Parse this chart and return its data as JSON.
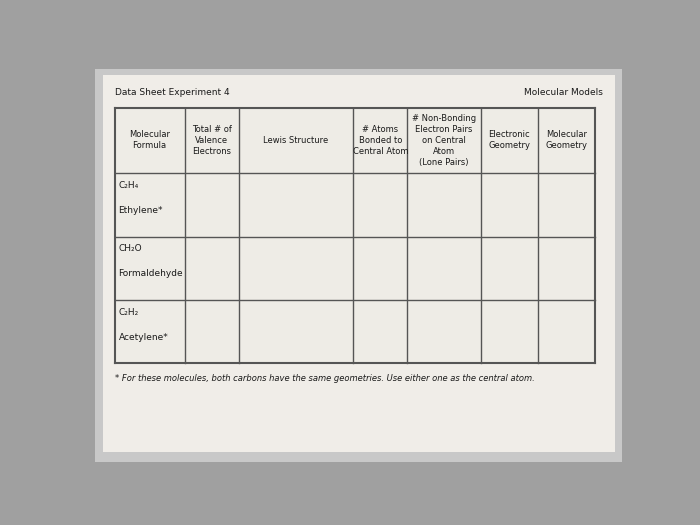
{
  "title_left": "Data Sheet Experiment 4",
  "title_right": "Molecular Models",
  "header_row": [
    "Molecular\nFormula",
    "Total # of\nValence\nElectrons",
    "Lewis Structure",
    "# Atoms\nBonded to\nCentral Atom",
    "# Non-Bonding\nElectron Pairs\non Central\nAtom\n(Lone Pairs)",
    "Electronic\nGeometry",
    "Molecular\nGeometry"
  ],
  "footnote": "* For these molecules, both carbons have the same geometries. Use either one as the central atom.",
  "outer_bg": "#a0a0a0",
  "paper_bg": "#c8c8c8",
  "white_bg": "#f0ede8",
  "table_bg": "#eeece6",
  "line_color": "#555555",
  "text_color": "#1a1a1a",
  "title_fontsize": 6.5,
  "header_fontsize": 6.0,
  "cell_fontsize": 6.5,
  "footnote_fontsize": 6.0,
  "col_widths_rel": [
    1.1,
    0.85,
    1.8,
    0.85,
    1.15,
    0.9,
    0.9
  ],
  "row_labels": [
    "C₂H₄\n\nEthylene*",
    "CH₂O\n\nFormaldehyde",
    "C₂H₂\n\nAcetylene*"
  ]
}
